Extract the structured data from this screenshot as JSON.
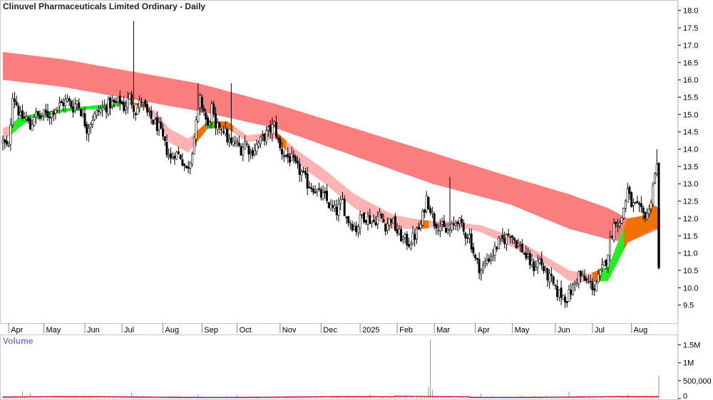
{
  "chart_data": {
    "type": "candlestick",
    "title": "Clinuvel Pharmaceuticals Limited Ordinary - Daily",
    "price_axis": {
      "ylim": [
        9.0,
        18.2
      ],
      "ticks": [
        "18.0",
        "17.5",
        "17.0",
        "16.5",
        "16.0",
        "15.5",
        "15.0",
        "14.5",
        "14.0",
        "13.5",
        "13.0",
        "12.5",
        "12.0",
        "11.5",
        "11.0",
        "10.5",
        "10.0",
        "9.5"
      ]
    },
    "volume_axis": {
      "label": "Volume",
      "ylim": [
        0,
        1750000
      ],
      "ticks": [
        {
          "label": "1.5M",
          "value": 1500000
        },
        {
          "label": "1M",
          "value": 1000000
        },
        {
          "label": "500,000",
          "value": 500000
        },
        {
          "label": "0",
          "value": 0
        }
      ]
    },
    "months": [
      "Apr",
      "May",
      "Jun",
      "Jul",
      "Aug",
      "Sep",
      "Oct",
      "Nov",
      "Dec",
      "2025",
      "Feb",
      "Mar",
      "Apr",
      "May",
      "Jun",
      "Jul",
      "Aug"
    ],
    "month_start_index": [
      3,
      21,
      42,
      61,
      82,
      102,
      120,
      142,
      163,
      183,
      202,
      221,
      242,
      261,
      283,
      302,
      322
    ],
    "n_days": 337,
    "price_anchors": [
      [
        0,
        14.2
      ],
      [
        3,
        14.0
      ],
      [
        5,
        15.6
      ],
      [
        7,
        15.3
      ],
      [
        9,
        14.9
      ],
      [
        12,
        14.9
      ],
      [
        14,
        14.6
      ],
      [
        16,
        15.0
      ],
      [
        19,
        14.9
      ],
      [
        21,
        15.0
      ],
      [
        24,
        15.0
      ],
      [
        27,
        15.2
      ],
      [
        30,
        15.3
      ],
      [
        33,
        15.4
      ],
      [
        36,
        15.2
      ],
      [
        38,
        15.4
      ],
      [
        40,
        15.1
      ],
      [
        43,
        14.6
      ],
      [
        46,
        14.9
      ],
      [
        49,
        15.1
      ],
      [
        52,
        15.2
      ],
      [
        55,
        15.3
      ],
      [
        58,
        15.3
      ],
      [
        60,
        15.4
      ],
      [
        62,
        15.2
      ],
      [
        65,
        15.5
      ],
      [
        68,
        15.1
      ],
      [
        71,
        15.4
      ],
      [
        74,
        15.0
      ],
      [
        77,
        14.8
      ],
      [
        80,
        14.6
      ],
      [
        83,
        14.1
      ],
      [
        86,
        13.7
      ],
      [
        88,
        13.9
      ],
      [
        91,
        13.8
      ],
      [
        94,
        13.4
      ],
      [
        96,
        13.7
      ],
      [
        99,
        14.7
      ],
      [
        101,
        15.4
      ],
      [
        103,
        15.1
      ],
      [
        105,
        14.6
      ],
      [
        107,
        15.2
      ],
      [
        109,
        14.5
      ],
      [
        111,
        14.7
      ],
      [
        113,
        14.6
      ],
      [
        115,
        14.3
      ],
      [
        117,
        14.1
      ],
      [
        119,
        14.2
      ],
      [
        122,
        14.0
      ],
      [
        124,
        14.2
      ],
      [
        127,
        13.9
      ],
      [
        130,
        14.1
      ],
      [
        133,
        14.3
      ],
      [
        136,
        14.5
      ],
      [
        139,
        14.7
      ],
      [
        142,
        14.0
      ],
      [
        145,
        13.8
      ],
      [
        148,
        13.7
      ],
      [
        150,
        13.5
      ],
      [
        153,
        13.3
      ],
      [
        156,
        13.0
      ],
      [
        159,
        12.9
      ],
      [
        162,
        12.7
      ],
      [
        165,
        12.6
      ],
      [
        168,
        12.3
      ],
      [
        171,
        12.2
      ],
      [
        174,
        12.5
      ],
      [
        176,
        12.0
      ],
      [
        178,
        11.9
      ],
      [
        181,
        11.7
      ],
      [
        184,
        12.1
      ],
      [
        187,
        12.0
      ],
      [
        190,
        11.9
      ],
      [
        193,
        12.1
      ],
      [
        196,
        11.8
      ],
      [
        199,
        12.0
      ],
      [
        202,
        11.6
      ],
      [
        205,
        11.4
      ],
      [
        208,
        11.3
      ],
      [
        211,
        11.5
      ],
      [
        214,
        11.8
      ],
      [
        217,
        12.6
      ],
      [
        219,
        12.3
      ],
      [
        221,
        11.9
      ],
      [
        224,
        11.8
      ],
      [
        227,
        11.6
      ],
      [
        230,
        11.7
      ],
      [
        233,
        12.0
      ],
      [
        236,
        11.6
      ],
      [
        239,
        11.5
      ],
      [
        242,
        10.8
      ],
      [
        245,
        10.5
      ],
      [
        248,
        10.8
      ],
      [
        251,
        11.0
      ],
      [
        254,
        11.3
      ],
      [
        257,
        11.4
      ],
      [
        260,
        11.6
      ],
      [
        263,
        11.3
      ],
      [
        266,
        11.1
      ],
      [
        269,
        10.8
      ],
      [
        272,
        10.6
      ],
      [
        275,
        10.8
      ],
      [
        278,
        10.4
      ],
      [
        281,
        10.2
      ],
      [
        283,
        9.9
      ],
      [
        286,
        9.8
      ],
      [
        289,
        9.7
      ],
      [
        292,
        10.0
      ],
      [
        295,
        10.4
      ],
      [
        298,
        10.2
      ],
      [
        301,
        10.1
      ],
      [
        303,
        10.0
      ],
      [
        306,
        10.4
      ],
      [
        309,
        10.8
      ],
      [
        312,
        11.6
      ],
      [
        314,
        12.0
      ],
      [
        316,
        11.8
      ],
      [
        318,
        12.3
      ],
      [
        320,
        12.8
      ],
      [
        322,
        12.4
      ],
      [
        325,
        12.3
      ],
      [
        328,
        12.1
      ],
      [
        331,
        12.2
      ],
      [
        333,
        13.0
      ],
      [
        335,
        13.5
      ],
      [
        336,
        10.7
      ]
    ],
    "spikes": [
      {
        "i": 67,
        "value": 17.7
      },
      {
        "i": 229,
        "value": 13.2
      },
      {
        "i": 100,
        "value": 15.9
      },
      {
        "i": 117,
        "value": 15.9
      },
      {
        "i": 286,
        "value": 9.5
      },
      {
        "i": 335,
        "value": 14.0
      }
    ],
    "long_band": {
      "color": "#fa7e7e",
      "upper": [
        [
          0,
          16.8
        ],
        [
          30,
          16.6
        ],
        [
          60,
          16.3
        ],
        [
          100,
          15.9
        ],
        [
          140,
          15.3
        ],
        [
          180,
          14.6
        ],
        [
          220,
          13.9
        ],
        [
          260,
          13.2
        ],
        [
          290,
          12.7
        ],
        [
          310,
          12.3
        ],
        [
          320,
          12.0
        ],
        [
          336,
          11.9
        ]
      ],
      "lower": [
        [
          0,
          16.0
        ],
        [
          30,
          15.8
        ],
        [
          60,
          15.5
        ],
        [
          100,
          15.1
        ],
        [
          140,
          14.6
        ],
        [
          180,
          13.8
        ],
        [
          220,
          13.0
        ],
        [
          260,
          12.4
        ],
        [
          290,
          11.7
        ],
        [
          310,
          11.4
        ],
        [
          320,
          11.3
        ],
        [
          336,
          11.7
        ]
      ]
    },
    "short_band": {
      "bull_color": "#22ee22",
      "bear_color": "#ffb3b3",
      "cross_color": "#f07000",
      "upper": [
        [
          0,
          14.6
        ],
        [
          4,
          14.7
        ],
        [
          8,
          14.9
        ],
        [
          15,
          15.0
        ],
        [
          25,
          15.1
        ],
        [
          35,
          15.2
        ],
        [
          45,
          15.25
        ],
        [
          55,
          15.3
        ],
        [
          66,
          15.35
        ],
        [
          72,
          15.3
        ],
        [
          78,
          15.1
        ],
        [
          85,
          14.6
        ],
        [
          95,
          14.3
        ],
        [
          105,
          14.8
        ],
        [
          115,
          14.8
        ],
        [
          125,
          14.4
        ],
        [
          140,
          14.5
        ],
        [
          150,
          14.0
        ],
        [
          165,
          13.4
        ],
        [
          180,
          12.7
        ],
        [
          200,
          12.1
        ],
        [
          215,
          11.95
        ],
        [
          230,
          11.9
        ],
        [
          245,
          11.8
        ],
        [
          260,
          11.5
        ],
        [
          275,
          11.0
        ],
        [
          290,
          10.5
        ],
        [
          300,
          10.4
        ],
        [
          310,
          10.6
        ],
        [
          320,
          12.0
        ],
        [
          330,
          12.1
        ],
        [
          333,
          12.4
        ],
        [
          336,
          12.3
        ]
      ],
      "lower": [
        [
          0,
          14.3
        ],
        [
          4,
          14.4
        ],
        [
          8,
          14.6
        ],
        [
          15,
          14.9
        ],
        [
          25,
          15.0
        ],
        [
          35,
          15.1
        ],
        [
          45,
          15.15
        ],
        [
          55,
          15.2
        ],
        [
          66,
          15.3
        ],
        [
          72,
          15.2
        ],
        [
          78,
          14.9
        ],
        [
          85,
          14.2
        ],
        [
          95,
          13.9
        ],
        [
          105,
          14.6
        ],
        [
          115,
          14.6
        ],
        [
          125,
          14.2
        ],
        [
          140,
          14.3
        ],
        [
          150,
          13.6
        ],
        [
          165,
          13.0
        ],
        [
          180,
          12.3
        ],
        [
          200,
          11.7
        ],
        [
          215,
          11.7
        ],
        [
          230,
          11.8
        ],
        [
          245,
          11.6
        ],
        [
          260,
          11.2
        ],
        [
          275,
          10.8
        ],
        [
          290,
          10.2
        ],
        [
          300,
          10.15
        ],
        [
          310,
          10.2
        ],
        [
          320,
          11.3
        ],
        [
          330,
          11.6
        ],
        [
          333,
          11.7
        ],
        [
          336,
          11.7
        ]
      ],
      "bull_ranges": [
        [
          4,
          60
        ],
        [
          102,
          112
        ],
        [
          303,
          336
        ]
      ],
      "cross_ranges": [
        [
          25,
          28
        ],
        [
          66,
          72
        ],
        [
          98,
          104
        ],
        [
          108,
          118
        ],
        [
          140,
          145
        ],
        [
          214,
          218
        ],
        [
          302,
          306
        ],
        [
          318,
          336
        ]
      ]
    },
    "volume_avg": 45000,
    "volume_ma_color": "#c8000a",
    "volume_spikes": [
      {
        "i": 10,
        "value": 200000
      },
      {
        "i": 14,
        "value": 150000
      },
      {
        "i": 66,
        "value": 170000
      },
      {
        "i": 100,
        "value": 120000
      },
      {
        "i": 120,
        "value": 110000
      },
      {
        "i": 188,
        "value": 130000
      },
      {
        "i": 218,
        "value": 320000
      },
      {
        "i": 219,
        "value": 1650000
      },
      {
        "i": 220,
        "value": 250000
      },
      {
        "i": 245,
        "value": 150000
      },
      {
        "i": 290,
        "value": 180000
      },
      {
        "i": 320,
        "value": 120000
      },
      {
        "i": 336,
        "value": 650000
      }
    ]
  }
}
